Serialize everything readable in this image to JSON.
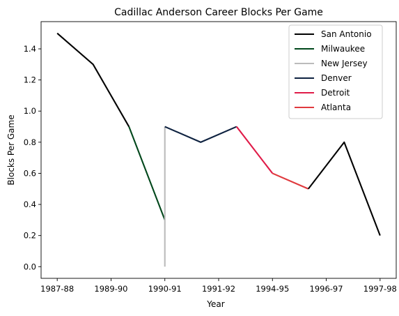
{
  "chart_data": {
    "type": "line",
    "title": "Cadillac Anderson Career Blocks Per Game",
    "xlabel": "Year",
    "ylabel": "Blocks Per Game",
    "x_tick_labels": [
      "1987-88",
      "1989-90",
      "1990-91",
      "1991-92",
      "1994-95",
      "1996-97",
      "1997-98"
    ],
    "ylim": [
      -0.075,
      1.575
    ],
    "y_ticks": [
      0.0,
      0.2,
      0.4,
      0.6,
      0.8,
      1.0,
      1.2,
      1.4
    ],
    "y_tick_labels": [
      "0.0",
      "0.2",
      "0.4",
      "0.6",
      "0.8",
      "1.0",
      "1.2",
      "1.4"
    ],
    "grid": false,
    "legend_position": "top-right",
    "series": [
      {
        "name": "San Antonio",
        "color": "#000000",
        "points": [
          {
            "x": 0,
            "y": 1.5
          },
          {
            "x": 1,
            "y": 1.3
          },
          {
            "x": 2,
            "y": 0.9
          }
        ]
      },
      {
        "name": "Milwaukee",
        "color": "#00471b",
        "points": [
          {
            "x": 2,
            "y": 0.9
          },
          {
            "x": 3,
            "y": 0.3
          }
        ]
      },
      {
        "name": "New Jersey",
        "color": "#bbbbbb",
        "points": [
          {
            "x": 3,
            "y": 0.9
          },
          {
            "x": 3,
            "y": 0.0
          }
        ]
      },
      {
        "name": "Denver",
        "color": "#0e2240",
        "points": [
          {
            "x": 3,
            "y": 0.9
          },
          {
            "x": 4,
            "y": 0.8
          },
          {
            "x": 5,
            "y": 0.9
          }
        ]
      },
      {
        "name": "Detroit",
        "color": "#e01b48",
        "points": [
          {
            "x": 5,
            "y": 0.9
          },
          {
            "x": 6,
            "y": 0.6
          }
        ]
      },
      {
        "name": "Atlanta",
        "color": "#e03a3e",
        "points": [
          {
            "x": 6,
            "y": 0.6
          },
          {
            "x": 7,
            "y": 0.5
          }
        ]
      },
      {
        "name": "San Antonio",
        "color": "#000000",
        "legend": false,
        "points": [
          {
            "x": 7,
            "y": 0.5
          },
          {
            "x": 8,
            "y": 0.8
          },
          {
            "x": 9,
            "y": 0.2
          }
        ]
      }
    ]
  }
}
